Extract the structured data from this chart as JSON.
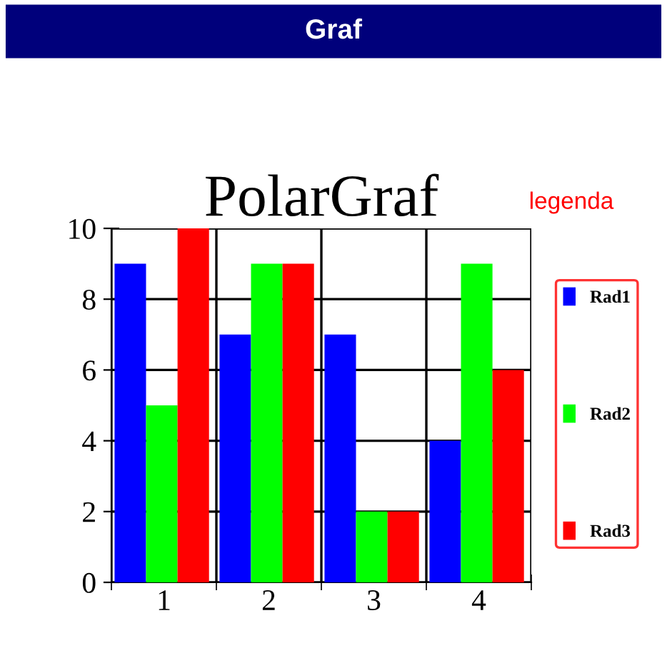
{
  "chart_data": {
    "type": "bar",
    "title": "PolarGraf",
    "annotations": [
      "Graf",
      "legenda"
    ],
    "categories": [
      "1",
      "2",
      "3",
      "4"
    ],
    "series": [
      {
        "name": "Rad1",
        "color": "#0000ff",
        "values": [
          9,
          7,
          7,
          4
        ]
      },
      {
        "name": "Rad2",
        "color": "#00ff00",
        "values": [
          5,
          9,
          2,
          9
        ]
      },
      {
        "name": "Rad3",
        "color": "#ff0000",
        "values": [
          10,
          9,
          2,
          6
        ]
      }
    ],
    "ylim": [
      0,
      10
    ],
    "yticks": [
      0,
      2,
      4,
      6,
      8,
      10
    ],
    "grid": true,
    "legend": "right"
  }
}
